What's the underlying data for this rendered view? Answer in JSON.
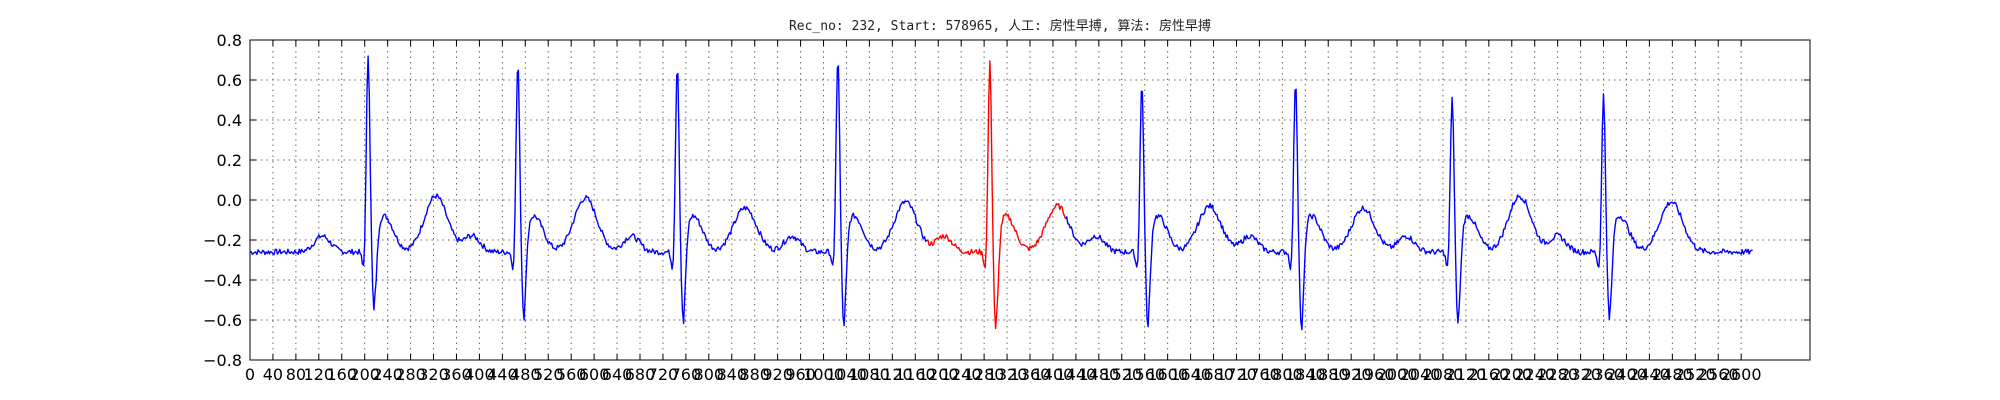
{
  "chart_data": {
    "type": "line",
    "title": "Rec_no: 232, Start: 578965, 人工: 房性早搏, 算法: 房性早搏",
    "xlabel": "",
    "ylabel": "",
    "xlim": [
      0,
      2720
    ],
    "ylim": [
      -0.8,
      0.8
    ],
    "y_ticks": [
      "0.8",
      "0.6",
      "0.4",
      "0.2",
      "0.0",
      "−0.2",
      "−0.4",
      "−0.6",
      "−0.8"
    ],
    "x_tick_values": [
      0,
      40,
      80,
      120,
      160,
      200,
      240,
      280,
      320,
      360,
      400,
      440,
      480,
      520,
      560,
      600,
      640,
      680,
      720,
      760,
      800,
      840,
      880,
      920,
      960,
      1000,
      1040,
      1080,
      1120,
      1160,
      1200,
      1240,
      1280,
      1320,
      1360,
      1400,
      1440,
      1480,
      1520,
      1560,
      1600,
      1640,
      1680,
      1720,
      1760,
      1800,
      1840,
      1880,
      1920,
      1960,
      2000,
      2040,
      2080,
      2120,
      2160,
      2200,
      2240,
      2280,
      2320,
      2360,
      2400,
      2440,
      2480,
      2520,
      2560,
      2600
    ],
    "x_tick_labels": [
      "0",
      "40",
      "80",
      "120",
      "160",
      "200",
      "240",
      "280",
      "320",
      "360",
      "400",
      "440",
      "480",
      "520",
      "560",
      "600",
      "640",
      "680",
      "720",
      "760",
      "800",
      "840",
      "880",
      "920",
      "960",
      "1000",
      "1040",
      "1080",
      "1120",
      "1160",
      "1200",
      "1240",
      "1280",
      "1320",
      "1360",
      "1400",
      "1440",
      "1480",
      "1520",
      "1560",
      "1600",
      "1640",
      "1680",
      "1720",
      "1760",
      "1800",
      "1840",
      "1880",
      "1920",
      "1960",
      "2000",
      "2040",
      "2080",
      "2120",
      "2160",
      "2200",
      "2240",
      "2280",
      "2320",
      "2360",
      "2400",
      "2440",
      "2480",
      "2520",
      "2560",
      "2600"
    ],
    "grid": true,
    "sample_range": [
      0,
      2620
    ],
    "baseline": -0.26,
    "beats": [
      {
        "r": 206,
        "r_peak": 0.73,
        "s_min": -0.6,
        "t_peak": 0.1,
        "highlight": false
      },
      {
        "r": 467,
        "r_peak": 0.69,
        "s_min": -0.62,
        "t_peak": 0.09,
        "highlight": false
      },
      {
        "r": 745,
        "r_peak": 0.69,
        "s_min": -0.65,
        "t_peak": 0.04,
        "highlight": false
      },
      {
        "r": 1025,
        "r_peak": 0.72,
        "s_min": -0.67,
        "t_peak": 0.07,
        "highlight": false
      },
      {
        "r": 1290,
        "r_peak": 0.69,
        "s_min": -0.7,
        "t_peak": 0.05,
        "highlight": true
      },
      {
        "r": 1555,
        "r_peak": 0.59,
        "s_min": -0.67,
        "t_peak": 0.05,
        "highlight": false
      },
      {
        "r": 1823,
        "r_peak": 0.61,
        "s_min": -0.69,
        "t_peak": 0.04,
        "highlight": false
      },
      {
        "r": 2096,
        "r_peak": 0.52,
        "s_min": -0.67,
        "t_peak": 0.1,
        "highlight": false
      },
      {
        "r": 2360,
        "r_peak": 0.53,
        "s_min": -0.65,
        "t_peak": 0.07,
        "highlight": false
      }
    ],
    "highlight_range": [
      1180,
      1420
    ],
    "series": [
      {
        "color": "#0000ff"
      },
      {
        "color": "#ff0000"
      }
    ]
  }
}
